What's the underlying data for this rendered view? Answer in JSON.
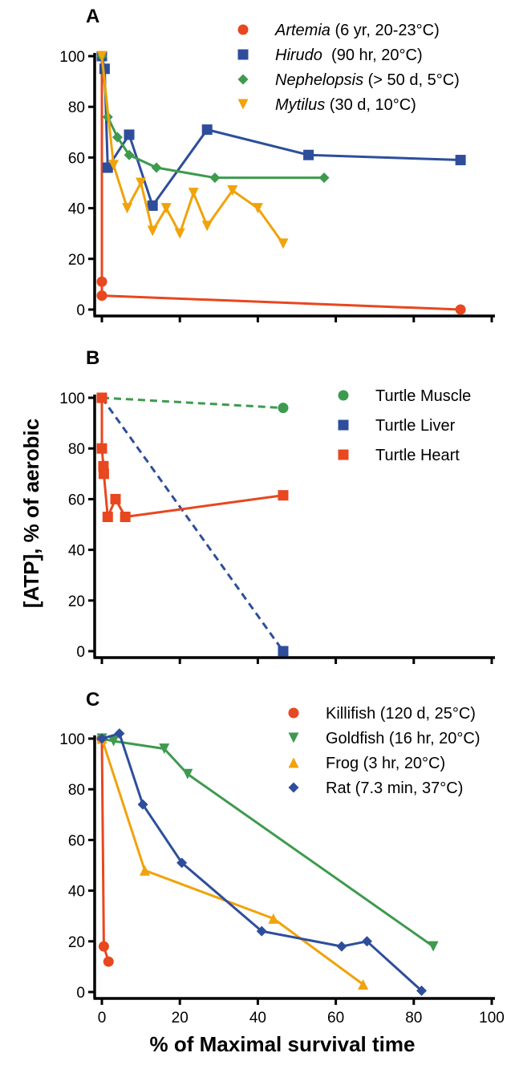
{
  "figure": {
    "ylabel": "[ATP], % of aerobic",
    "xlabel": "% of Maximal survival time"
  },
  "colors": {
    "red": "#E8471F",
    "blue": "#2E4E9C",
    "green": "#3E9A4E",
    "orange": "#F0A30A"
  },
  "chart_data": [
    {
      "panel": "A",
      "type": "line",
      "xlim": [
        0,
        100
      ],
      "ylim": [
        0,
        100
      ],
      "yticks": [
        0,
        20,
        40,
        60,
        80,
        100
      ],
      "legend_position": "top-right",
      "series": [
        {
          "name_italic": "Artemia",
          "name_rest": " (6 yr, 20-23°C)",
          "color": "red",
          "marker": "circle",
          "line": "solid",
          "points": [
            [
              0,
              100
            ],
            [
              0,
              11
            ],
            [
              0,
              5.5
            ],
            [
              92,
              0
            ]
          ]
        },
        {
          "name_italic": "Hirudo",
          "name_rest": "  (90 hr, 20°C)",
          "color": "blue",
          "marker": "square",
          "line": "solid",
          "points": [
            [
              0,
              100
            ],
            [
              0.7,
              95
            ],
            [
              1.5,
              56
            ],
            [
              7,
              69
            ],
            [
              13,
              41
            ],
            [
              27,
              71
            ],
            [
              53,
              61
            ],
            [
              92,
              59
            ]
          ]
        },
        {
          "name_italic": "Nephelopsis",
          "name_rest": " (> 50 d, 5°C)",
          "color": "green",
          "marker": "diamond",
          "line": "solid",
          "points": [
            [
              0,
              100
            ],
            [
              1.5,
              76
            ],
            [
              4,
              68
            ],
            [
              7,
              61
            ],
            [
              14,
              56
            ],
            [
              29,
              52
            ],
            [
              57,
              52
            ]
          ]
        },
        {
          "name_italic": "Mytilus",
          "name_rest": " (30 d, 10°C)",
          "color": "orange",
          "marker": "triangle-down",
          "line": "solid",
          "points": [
            [
              0,
              100
            ],
            [
              3,
              57
            ],
            [
              6.5,
              40
            ],
            [
              10,
              50
            ],
            [
              13,
              31
            ],
            [
              16.5,
              40
            ],
            [
              20,
              30
            ],
            [
              23.5,
              46
            ],
            [
              27,
              33
            ],
            [
              33.5,
              47
            ],
            [
              40,
              40
            ],
            [
              46.5,
              26
            ]
          ]
        }
      ]
    },
    {
      "panel": "B",
      "type": "line",
      "xlim": [
        0,
        100
      ],
      "ylim": [
        0,
        100
      ],
      "yticks": [
        0,
        20,
        40,
        60,
        80,
        100
      ],
      "legend_position": "top-right",
      "series": [
        {
          "name": "Turtle Muscle",
          "color": "green",
          "marker": "circle",
          "line": "dashed",
          "points": [
            [
              0,
              100
            ],
            [
              46.5,
              96
            ]
          ]
        },
        {
          "name": "Turtle Liver",
          "color": "blue",
          "marker": "square",
          "line": "dashed",
          "points": [
            [
              0,
              100
            ],
            [
              46.5,
              0
            ]
          ]
        },
        {
          "name": "Turtle Heart",
          "color": "red",
          "marker": "square",
          "line": "solid",
          "points": [
            [
              0,
              100
            ],
            [
              0,
              80
            ],
            [
              0.4,
              73
            ],
            [
              0.5,
              70
            ],
            [
              1.5,
              53
            ],
            [
              3.5,
              60
            ],
            [
              6,
              53
            ],
            [
              46.5,
              61.5
            ]
          ]
        }
      ]
    },
    {
      "panel": "C",
      "type": "line",
      "xlim": [
        0,
        100
      ],
      "ylim": [
        0,
        100
      ],
      "yticks": [
        0,
        20,
        40,
        60,
        80,
        100
      ],
      "xticks": [
        0,
        20,
        40,
        60,
        80,
        100
      ],
      "legend_position": "top-right",
      "series": [
        {
          "name": "Killifish (120 d, 25°C)",
          "color": "red",
          "marker": "circle",
          "line": "solid",
          "points": [
            [
              0,
              100
            ],
            [
              0.5,
              18
            ],
            [
              1.7,
              12
            ]
          ]
        },
        {
          "name": "Goldfish (16 hr, 20°C)",
          "color": "green",
          "marker": "triangle-down",
          "line": "solid",
          "points": [
            [
              0,
              100
            ],
            [
              3,
              99
            ],
            [
              16,
              96
            ],
            [
              22,
              86
            ],
            [
              85,
              18
            ]
          ]
        },
        {
          "name": "Frog (3 hr, 20°C)",
          "color": "orange",
          "marker": "triangle-up",
          "line": "solid",
          "points": [
            [
              0,
              100
            ],
            [
              11,
              48
            ],
            [
              44,
              29
            ],
            [
              67,
              3
            ]
          ]
        },
        {
          "name": "Rat (7.3 min, 37°C)",
          "color": "blue",
          "marker": "diamond",
          "line": "solid",
          "points": [
            [
              0,
              100
            ],
            [
              4.5,
              102
            ],
            [
              10.5,
              74
            ],
            [
              20.5,
              51
            ],
            [
              41,
              24
            ],
            [
              61.5,
              18
            ],
            [
              68,
              20
            ],
            [
              82,
              0.5
            ]
          ]
        }
      ]
    }
  ]
}
